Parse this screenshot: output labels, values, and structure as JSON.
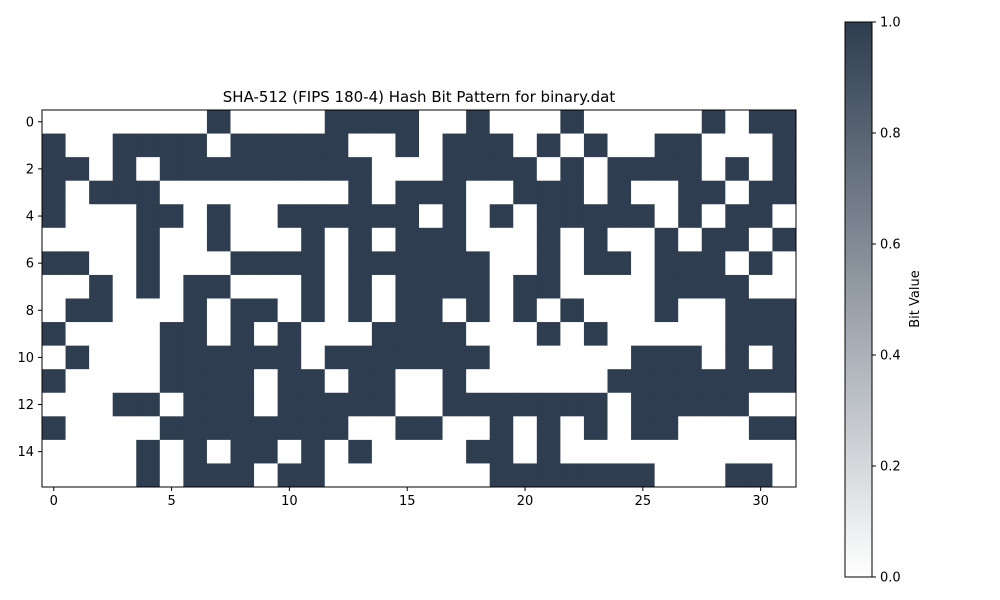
{
  "chart_data": {
    "type": "heatmap",
    "title": "SHA-512 (FIPS 180-4) Hash Bit Pattern for binary.dat",
    "x_ticks": [
      0,
      5,
      10,
      15,
      20,
      25,
      30
    ],
    "y_ticks": [
      0,
      2,
      4,
      6,
      8,
      10,
      12,
      14
    ],
    "rows": 16,
    "cols": 32,
    "grid": false,
    "colormap": [
      "#ffffff",
      "#2e3d4f"
    ],
    "colorbar": {
      "label": "Bit Value",
      "range": [
        0,
        1
      ],
      "ticks": [
        "0.0",
        "0.2",
        "0.4",
        "0.6",
        "0.8",
        "1.0"
      ],
      "placement": "right"
    },
    "values": [
      "00000001000011110010001000001011",
      "10011110111110010111010100110001",
      "11010111111111000111101011110101",
      "10111000000001011100111010011011",
      "10001101001111110101011111010110",
      "00001001000101011100010100101101",
      "11001000111101111110010110111010",
      "00101011000101011110110000111100",
      "01100010110101011010101000100111",
      "10000110101000111100010100000111",
      "01000111111011111110000001110101",
      "10000111101101100100000011111111",
      "00011011101111100111111101111100",
      "10000111111110011001010101100011",
      "00001010110101000011010000000000",
      "00001011101100000001111111000110"
    ]
  }
}
